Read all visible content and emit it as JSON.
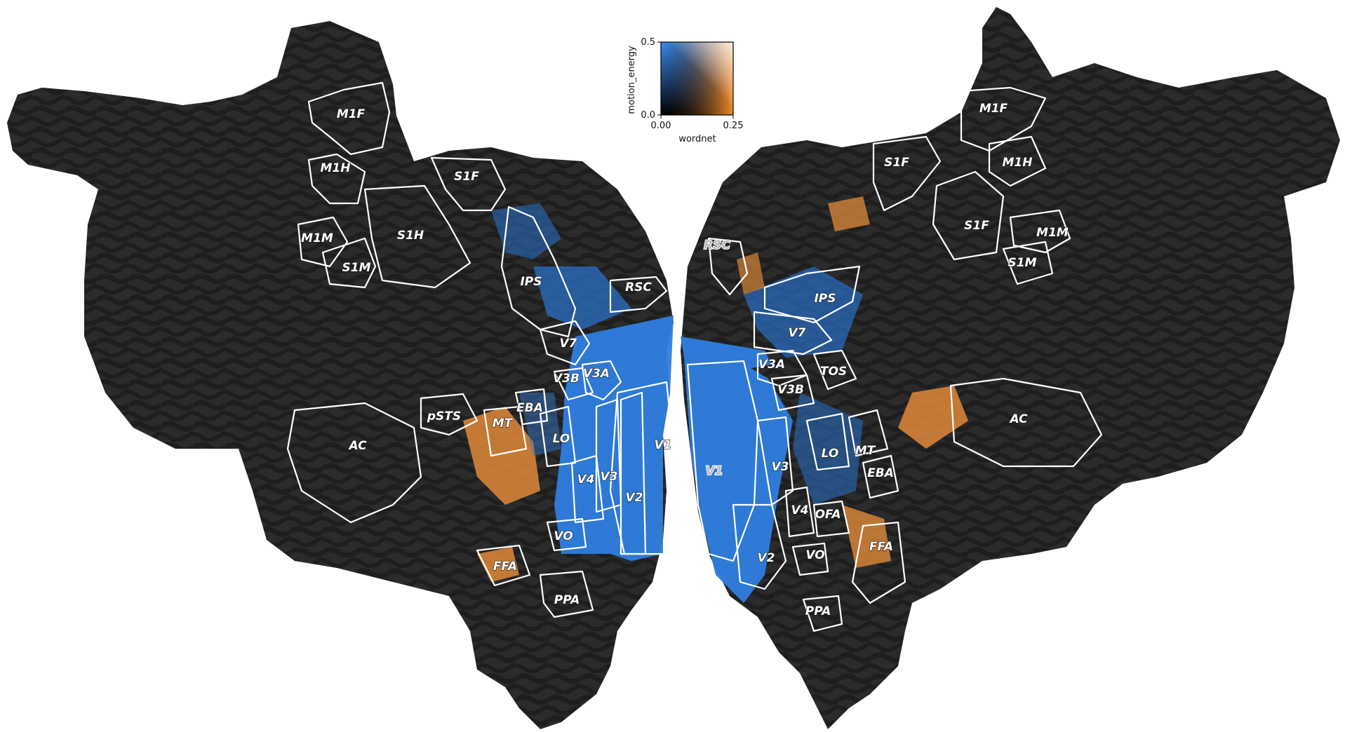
{
  "colors": {
    "background": "#ffffff",
    "cortex_dark": "#2b2b2b",
    "sulci": "#1f1f1f",
    "blue": "#2f7fe0",
    "orange": "#e08a3a",
    "outline": "#ffffff"
  },
  "colorbar": {
    "y_label": "motion_energy",
    "x_label": "wordnet",
    "y_ticks": [
      "0.5",
      "0.0"
    ],
    "x_ticks": [
      "0.00",
      "0.25"
    ]
  },
  "left_hemisphere": {
    "labels": {
      "M1F": "M1F",
      "M1H": "M1H",
      "S1F": "S1F",
      "M1M": "M1M",
      "S1H": "S1H",
      "S1M": "S1M",
      "IPS": "IPS",
      "RSC": "RSC",
      "V7": "V7",
      "V3B": "V3B",
      "V3A": "V3A",
      "EBA": "EBA",
      "pSTS": "pSTS",
      "MT": "MT",
      "LO": "LO",
      "AC": "AC",
      "V1": "V1",
      "V4": "V4",
      "V3": "V3",
      "V2": "V2",
      "VO": "VO",
      "FFA": "FFA",
      "PPA": "PPA"
    }
  },
  "right_hemisphere": {
    "labels": {
      "M1F": "M1F",
      "S1F_top": "S1F",
      "M1H": "M1H",
      "S1F": "S1F",
      "M1M": "M1M",
      "S1M": "S1M",
      "RSC": "RSC",
      "IPS": "IPS",
      "V7": "V7",
      "V3A": "V3A",
      "TOS": "TOS",
      "V3B": "V3B",
      "AC": "AC",
      "LO": "LO",
      "MT": "MT",
      "EBA": "EBA",
      "V1": "V1",
      "V3": "V3",
      "V4": "V4",
      "OFA": "OFA",
      "FFA": "FFA",
      "V2": "V2",
      "VO": "VO",
      "PPA": "PPA"
    }
  }
}
